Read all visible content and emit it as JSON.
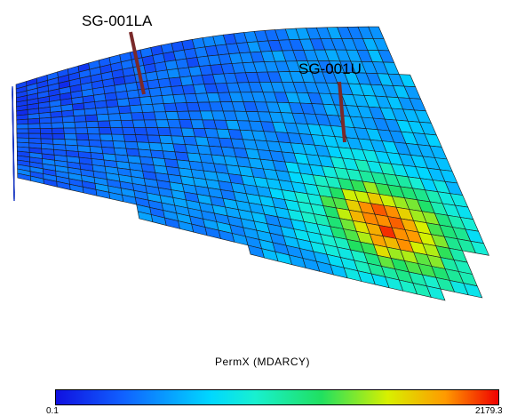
{
  "wells": [
    {
      "name": "SG-001LA"
    },
    {
      "name": "SG-001U"
    }
  ],
  "colorbar": {
    "property": "PermX (MDARCY)",
    "min_label": "0.1",
    "max_label": "2179.3",
    "min": 0.1,
    "max": 2179.3
  },
  "colors": {
    "grid_line": "#1a1a1a",
    "well_path": "#7a2a2a",
    "background": "#ffffff"
  },
  "high_perm_cells_approx_values": [
    {
      "region": "east-central",
      "value_range": [
        1400,
        2179.3
      ]
    }
  ]
}
